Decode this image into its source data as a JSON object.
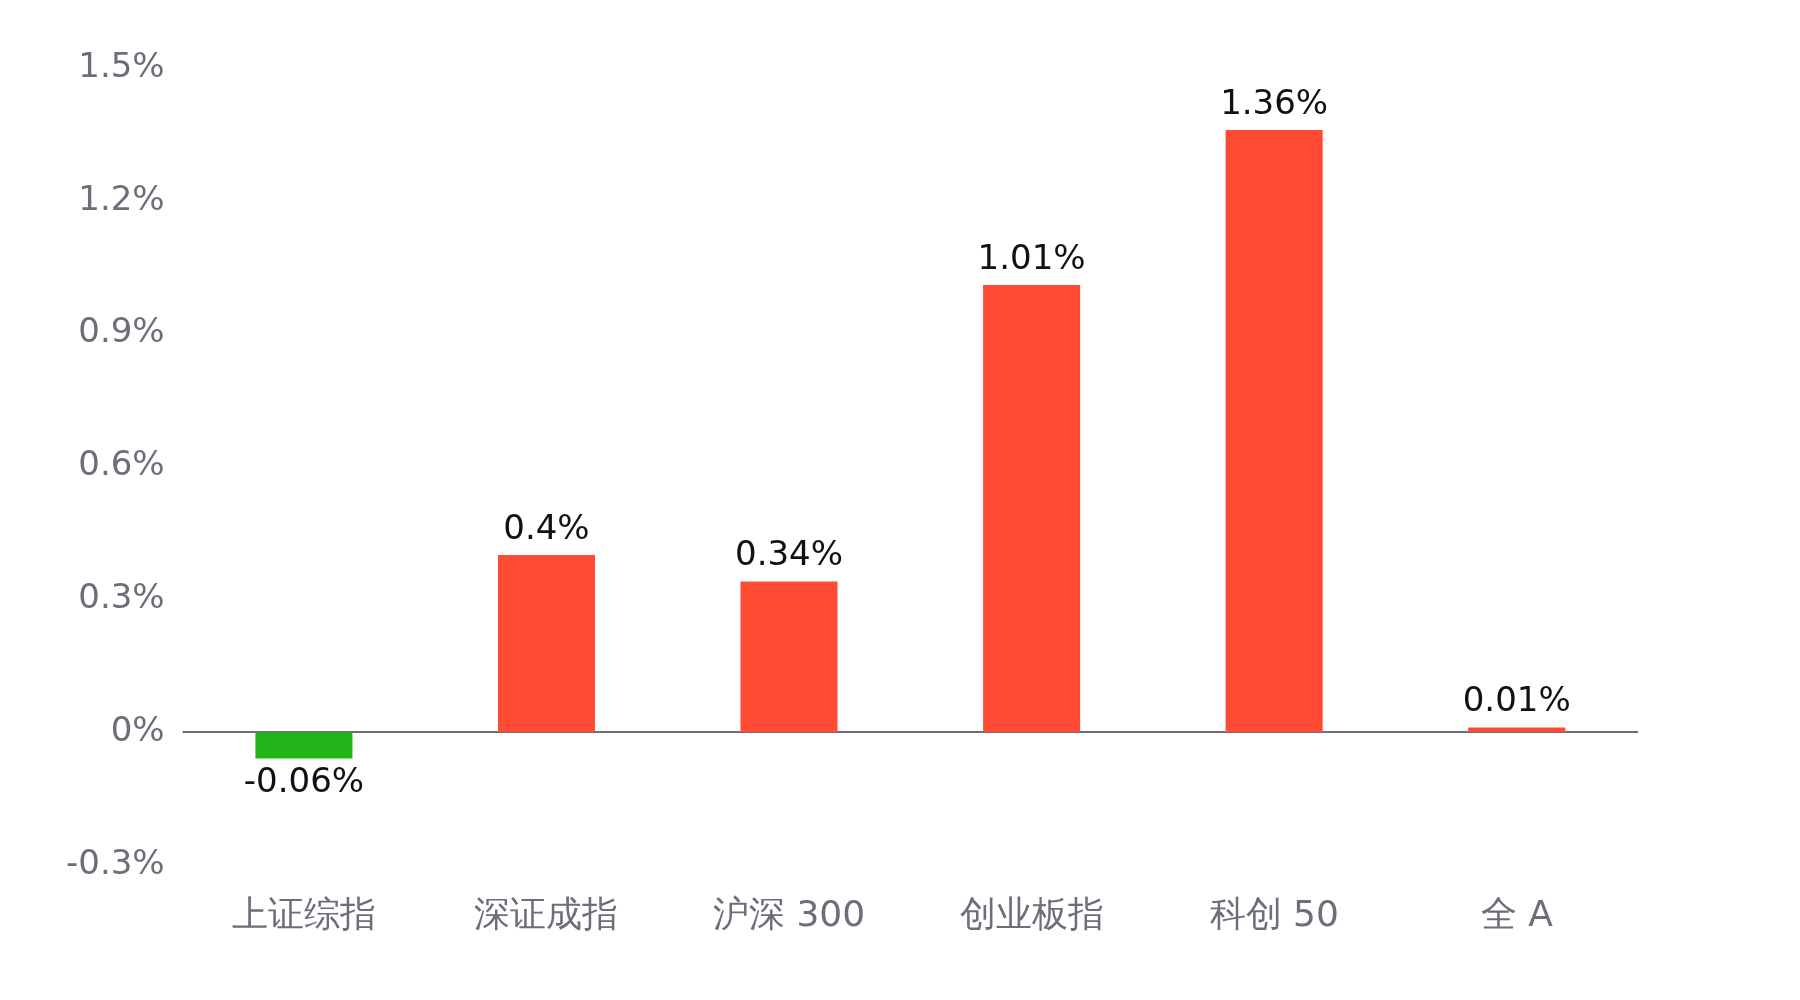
{
  "chart_data": {
    "type": "bar",
    "categories": [
      "上证综指",
      "深证成指",
      "沪深 300",
      "创业板指",
      "科创 50",
      "全 A"
    ],
    "values": [
      -0.06,
      0.4,
      0.34,
      1.01,
      1.36,
      0.01
    ],
    "colors": [
      "#22b318",
      "#ff4b33",
      "#ff4b33",
      "#ff4b33",
      "#ff4b33",
      "#ff4b33"
    ],
    "value_labels": [
      "-0.06%",
      "0.4%",
      "0.34%",
      "1.01%",
      "1.36%",
      "0.01%"
    ],
    "ylim": [
      -0.3,
      1.5
    ],
    "yticks": [
      {
        "value": -0.3,
        "label": "-0.3%"
      },
      {
        "value": 0,
        "label": "0%"
      },
      {
        "value": 0.3,
        "label": "0.3%"
      },
      {
        "value": 0.6,
        "label": "0.6%"
      },
      {
        "value": 0.9,
        "label": "0.9%"
      },
      {
        "value": 1.2,
        "label": "1.2%"
      },
      {
        "value": 1.5,
        "label": "1.5%"
      }
    ],
    "ref_lines": [
      {
        "axis": "y",
        "value": 0,
        "color": "#6e6e7a"
      }
    ],
    "grid": false,
    "legend": false
  }
}
